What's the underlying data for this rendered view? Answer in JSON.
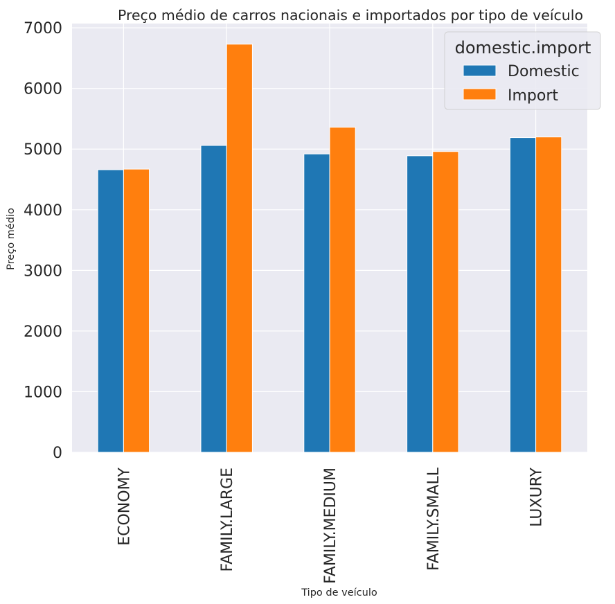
{
  "chart_data": {
    "type": "bar",
    "title": "Preço médio de carros nacionais e importados por tipo de veículo",
    "xlabel": "Tipo de veículo",
    "ylabel": "Preço médio",
    "categories": [
      "ECONOMY",
      "FAMILY.LARGE",
      "FAMILY.MEDIUM",
      "FAMILY.SMALL",
      "LUXURY"
    ],
    "series": [
      {
        "name": "Domestic",
        "color": "#1f77b4",
        "values": [
          4660,
          5060,
          4920,
          4890,
          5190
        ]
      },
      {
        "name": "Import",
        "color": "#ff7f0e",
        "values": [
          4670,
          6730,
          5360,
          4960,
          5200
        ]
      }
    ],
    "ylim": [
      0,
      7070
    ],
    "yticks": [
      0,
      1000,
      2000,
      3000,
      4000,
      5000,
      6000,
      7000
    ],
    "legend": {
      "title": "domestic.import",
      "placement": "top-right"
    },
    "grid": true,
    "background": "#eaeaf2"
  }
}
